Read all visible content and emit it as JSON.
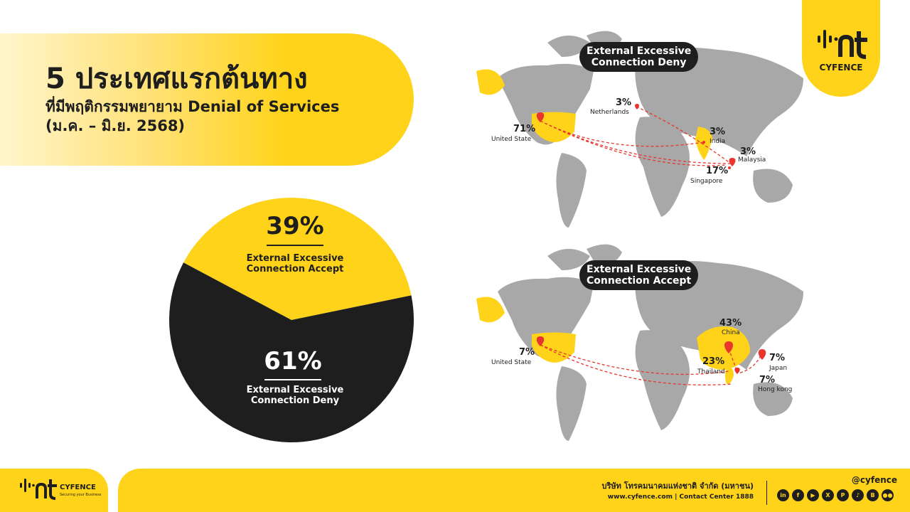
{
  "header": {
    "title": "5 ประเทศแรกต้นทาง",
    "subtitle_line1": "ที่มีพฤติกรรมพยายาม Denial of Services",
    "subtitle_line2": "(ม.ค. – มิ.ย. 2568)"
  },
  "brand": {
    "logo_text": "CYFENCE",
    "footer_brand": "CYFENCE",
    "footer_slogan": "Securing your Business"
  },
  "colors": {
    "accent": "#ffd319",
    "dark": "#1e1e1e",
    "land": "#a8a8a8",
    "marker": "#e8352e"
  },
  "chart_data": [
    {
      "type": "pie",
      "labels": [
        "External Excessive Connection Accept",
        "External Excessive Connection Deny"
      ],
      "values": [
        39,
        61
      ],
      "value_labels": [
        "39%",
        "61%"
      ],
      "colors": [
        "#ffd319",
        "#1e1e1e"
      ],
      "label_lines": [
        [
          "External Excessive",
          "Connection Accept"
        ],
        [
          "External Excessive",
          "Connection Deny"
        ]
      ]
    },
    {
      "type": "map",
      "title": "External Excessive Connection Deny",
      "title_lines": [
        "External Excessive",
        "Connection Deny"
      ],
      "countries": [
        "United State",
        "Netherlands",
        "India",
        "Malaysia",
        "Singapore"
      ],
      "values": [
        71,
        3,
        3,
        3,
        17
      ],
      "value_labels": [
        "71%",
        "3%",
        "3%",
        "3%",
        "17%"
      ]
    },
    {
      "type": "map",
      "title": "External Excessive Connection Accept",
      "title_lines": [
        "External Excessive",
        "Connection Accept"
      ],
      "countries": [
        "United State",
        "China",
        "Thailand",
        "Japan",
        "Hong kong"
      ],
      "values": [
        7,
        43,
        23,
        7,
        7
      ],
      "value_labels": [
        "7%",
        "43%",
        "23%",
        "7%",
        "7%"
      ]
    }
  ],
  "footer": {
    "company": "บริษัท โทรคมนาคมแห่งชาติ จำกัด (มหาชน)",
    "web": "www.cyfence.com | Contact Center 1888",
    "handle": "@cyfence",
    "social_icons": [
      "linkedin-icon",
      "facebook-icon",
      "youtube-icon",
      "x-icon",
      "pinterest-icon",
      "tiktok-icon",
      "blockdit-icon",
      "medium-icon"
    ],
    "social_glyphs": [
      "in",
      "f",
      "▶",
      "X",
      "P",
      "♪",
      "B",
      "●●"
    ]
  }
}
